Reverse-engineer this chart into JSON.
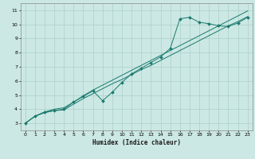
{
  "xlabel": "Humidex (Indice chaleur)",
  "bg_color": "#cce8e4",
  "grid_color": "#aacfca",
  "line_color": "#1a7a6e",
  "xlim": [
    -0.5,
    23.5
  ],
  "ylim": [
    2.5,
    11.5
  ],
  "xticks": [
    0,
    1,
    2,
    3,
    4,
    5,
    6,
    7,
    8,
    9,
    10,
    11,
    12,
    13,
    14,
    15,
    16,
    17,
    18,
    19,
    20,
    21,
    22,
    23
  ],
  "yticks": [
    3,
    4,
    5,
    6,
    7,
    8,
    9,
    10,
    11
  ],
  "line_jagged_x": [
    0,
    1,
    2,
    3,
    4,
    5,
    6,
    7,
    8,
    9,
    10,
    11,
    12,
    13,
    14,
    15,
    16,
    17,
    18,
    19,
    20,
    21,
    22,
    23
  ],
  "line_jagged_y": [
    3.0,
    3.5,
    3.8,
    3.9,
    4.0,
    4.5,
    4.9,
    5.3,
    4.6,
    5.2,
    5.9,
    6.5,
    6.9,
    7.3,
    7.7,
    8.3,
    10.4,
    10.5,
    10.15,
    10.05,
    9.9,
    9.85,
    10.1,
    10.5
  ],
  "line_low_x": [
    0,
    1,
    2,
    3,
    4,
    5,
    6,
    7,
    8,
    9,
    10,
    11,
    12,
    13,
    14,
    15,
    16,
    17,
    18,
    19,
    20,
    21,
    22,
    23
  ],
  "line_low_y": [
    3.0,
    3.5,
    3.75,
    3.9,
    3.95,
    4.35,
    4.75,
    5.1,
    5.45,
    5.8,
    6.1,
    6.45,
    6.8,
    7.1,
    7.45,
    7.8,
    8.15,
    8.5,
    8.85,
    9.2,
    9.55,
    9.9,
    10.2,
    10.55
  ],
  "line_high_x": [
    0,
    1,
    2,
    3,
    4,
    5,
    6,
    7,
    8,
    9,
    10,
    11,
    12,
    13,
    14,
    15,
    16,
    17,
    18,
    19,
    20,
    21,
    22,
    23
  ],
  "line_high_y": [
    3.0,
    3.5,
    3.8,
    4.0,
    4.1,
    4.5,
    4.95,
    5.35,
    5.7,
    6.05,
    6.4,
    6.75,
    7.1,
    7.45,
    7.8,
    8.15,
    8.5,
    8.85,
    9.2,
    9.55,
    9.9,
    10.25,
    10.6,
    10.95
  ]
}
